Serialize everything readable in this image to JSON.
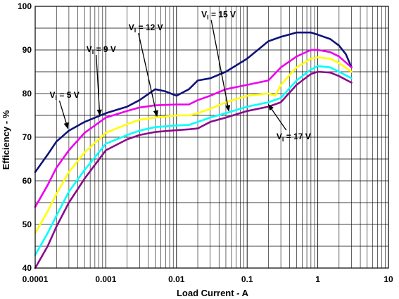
{
  "chart_data": {
    "type": "line",
    "xscale": "log",
    "xlim": [
      0.0001,
      10
    ],
    "ylim": [
      40,
      100
    ],
    "grid": true,
    "xlabel": "Load Current - A",
    "ylabel": "Efficiency - %",
    "x_tick_labels": [
      "0.0001",
      "0.001",
      "0.01",
      "0.1",
      "1",
      "10"
    ],
    "y_tick_labels": [
      "40",
      "50",
      "60",
      "70",
      "80",
      "90",
      "100"
    ],
    "series": [
      {
        "name": "VI = 5 V",
        "color": "#0f127a",
        "points": [
          [
            0.0001,
            62
          ],
          [
            0.00015,
            66
          ],
          [
            0.0002,
            69
          ],
          [
            0.0003,
            71.5
          ],
          [
            0.0005,
            73.5
          ],
          [
            0.001,
            75.5
          ],
          [
            0.002,
            77
          ],
          [
            0.003,
            78.5
          ],
          [
            0.005,
            81
          ],
          [
            0.007,
            80.5
          ],
          [
            0.01,
            79.5
          ],
          [
            0.015,
            81
          ],
          [
            0.02,
            83
          ],
          [
            0.03,
            83.5
          ],
          [
            0.05,
            85
          ],
          [
            0.1,
            88
          ],
          [
            0.2,
            92
          ],
          [
            0.3,
            93
          ],
          [
            0.5,
            94
          ],
          [
            0.8,
            94
          ],
          [
            1,
            93.5
          ],
          [
            1.5,
            92.5
          ],
          [
            2,
            91
          ],
          [
            2.5,
            89
          ],
          [
            3,
            86
          ]
        ]
      },
      {
        "name": "VI = 9 V",
        "color": "#ee00ee",
        "points": [
          [
            0.0001,
            54
          ],
          [
            0.00015,
            59
          ],
          [
            0.0002,
            63
          ],
          [
            0.0003,
            67
          ],
          [
            0.0005,
            71
          ],
          [
            0.001,
            74.5
          ],
          [
            0.002,
            76
          ],
          [
            0.003,
            76.8
          ],
          [
            0.005,
            77.3
          ],
          [
            0.01,
            77.5
          ],
          [
            0.015,
            77.5
          ],
          [
            0.02,
            78.5
          ],
          [
            0.03,
            79.5
          ],
          [
            0.05,
            81
          ],
          [
            0.1,
            82
          ],
          [
            0.2,
            83
          ],
          [
            0.3,
            86
          ],
          [
            0.5,
            88.5
          ],
          [
            0.8,
            90
          ],
          [
            1,
            90
          ],
          [
            1.5,
            89.5
          ],
          [
            2,
            88.5
          ],
          [
            3,
            86
          ]
        ]
      },
      {
        "name": "VI = 12 V",
        "color": "#ffff00",
        "points": [
          [
            0.0001,
            48
          ],
          [
            0.00015,
            53
          ],
          [
            0.0002,
            57
          ],
          [
            0.0003,
            62
          ],
          [
            0.0005,
            66.5
          ],
          [
            0.001,
            71
          ],
          [
            0.002,
            73
          ],
          [
            0.003,
            74
          ],
          [
            0.005,
            74.5
          ],
          [
            0.01,
            75
          ],
          [
            0.015,
            75
          ],
          [
            0.02,
            75.5
          ],
          [
            0.03,
            76.5
          ],
          [
            0.05,
            78
          ],
          [
            0.1,
            79.5
          ],
          [
            0.2,
            80
          ],
          [
            0.25,
            79.5
          ],
          [
            0.3,
            82
          ],
          [
            0.5,
            86
          ],
          [
            0.8,
            88
          ],
          [
            1,
            88.3
          ],
          [
            1.5,
            88
          ],
          [
            2,
            87
          ],
          [
            3,
            85
          ]
        ]
      },
      {
        "name": "VI = 15 V",
        "color": "#00ffff",
        "points": [
          [
            0.0001,
            43
          ],
          [
            0.00015,
            48
          ],
          [
            0.0002,
            52
          ],
          [
            0.0003,
            57.5
          ],
          [
            0.0005,
            62.5
          ],
          [
            0.001,
            68.5
          ],
          [
            0.002,
            70.5
          ],
          [
            0.003,
            71.5
          ],
          [
            0.005,
            72.3
          ],
          [
            0.01,
            72.7
          ],
          [
            0.015,
            72.8
          ],
          [
            0.02,
            73.5
          ],
          [
            0.03,
            74.5
          ],
          [
            0.05,
            75.5
          ],
          [
            0.1,
            77
          ],
          [
            0.2,
            78
          ],
          [
            0.3,
            79
          ],
          [
            0.5,
            83
          ],
          [
            0.8,
            85.5
          ],
          [
            1,
            86.3
          ],
          [
            1.5,
            86
          ],
          [
            2,
            85
          ],
          [
            3,
            83.5
          ]
        ]
      },
      {
        "name": "VI = 17 V",
        "color": "#8b0a8b",
        "points": [
          [
            0.0001,
            40
          ],
          [
            0.00015,
            45
          ],
          [
            0.0002,
            49.5
          ],
          [
            0.0003,
            55
          ],
          [
            0.0005,
            60.5
          ],
          [
            0.001,
            67
          ],
          [
            0.002,
            69.5
          ],
          [
            0.003,
            70.5
          ],
          [
            0.005,
            71.2
          ],
          [
            0.01,
            71.6
          ],
          [
            0.015,
            71.8
          ],
          [
            0.02,
            72
          ],
          [
            0.03,
            73.5
          ],
          [
            0.05,
            74.5
          ],
          [
            0.1,
            76
          ],
          [
            0.2,
            77
          ],
          [
            0.3,
            78
          ],
          [
            0.5,
            82
          ],
          [
            0.8,
            84.5
          ],
          [
            1,
            85
          ],
          [
            1.5,
            84.8
          ],
          [
            2,
            84
          ],
          [
            3,
            82.5
          ]
        ]
      }
    ],
    "annotations": [
      {
        "main": "V",
        "sub": "I",
        "rest": " = 5 V",
        "label_at": [
          0.00016,
          79
        ],
        "arrow_to": [
          0.00029,
          72
        ]
      },
      {
        "main": "V",
        "sub": "I",
        "rest": " = 9 V",
        "label_at": [
          0.00053,
          89.5
        ],
        "arrow_to": [
          0.00082,
          75
        ]
      },
      {
        "main": "V",
        "sub": "I",
        "rest": " = 12 V",
        "label_at": [
          0.0021,
          94.5
        ],
        "arrow_to": [
          0.0053,
          74.8
        ]
      },
      {
        "main": "V",
        "sub": "I",
        "rest": " = 15 V",
        "label_at": [
          0.0225,
          97.5
        ],
        "arrow_to": [
          0.055,
          76
        ]
      },
      {
        "main": "V",
        "sub": "I",
        "rest": " = 17 V",
        "label_at": [
          0.26,
          69.5
        ],
        "arrow_to": [
          0.2,
          77.5
        ]
      }
    ]
  }
}
